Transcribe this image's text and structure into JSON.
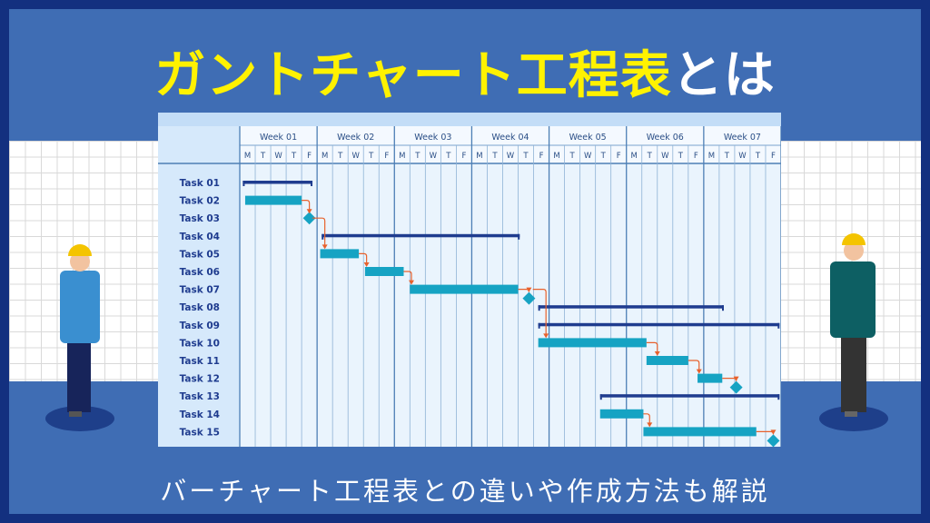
{
  "title": {
    "highlight": "ガントチャート工程表",
    "rest": "とは"
  },
  "subtitle": "バーチャート工程表との違いや作成方法も解説",
  "colors": {
    "frame": "#13307f",
    "background": "#3f6db4",
    "title_yellow": "#fff200",
    "summary_bar": "#1f3c8f",
    "task_bar": "#16a3c3",
    "arrow": "#e8612c",
    "grid_panel": "#eaf4fd",
    "header": "#d6e9fb"
  },
  "chart_data": {
    "type": "gantt",
    "weeks": [
      "Week 01",
      "Week 02",
      "Week 03",
      "Week 04",
      "Week 05",
      "Week 06",
      "Week 07"
    ],
    "days": [
      "M",
      "T",
      "W",
      "T",
      "F"
    ],
    "tasks": [
      {
        "name": "Task 01",
        "kind": "summary",
        "start": 0.2,
        "end": 4.7
      },
      {
        "name": "Task 02",
        "kind": "bar",
        "start": 0.35,
        "end": 4.0
      },
      {
        "name": "Task 03",
        "kind": "milestone",
        "at": 4.5
      },
      {
        "name": "Task 04",
        "kind": "summary",
        "start": 5.3,
        "end": 18.1
      },
      {
        "name": "Task 05",
        "kind": "bar",
        "start": 5.2,
        "end": 7.7
      },
      {
        "name": "Task 06",
        "kind": "bar",
        "start": 8.1,
        "end": 10.6
      },
      {
        "name": "Task 07",
        "kind": "bar",
        "start": 11.0,
        "end": 18.0,
        "milestone": 18.7
      },
      {
        "name": "Task 08",
        "kind": "summary",
        "start": 19.3,
        "end": 31.3
      },
      {
        "name": "Task 09",
        "kind": "summary",
        "start": 19.3,
        "end": 34.9
      },
      {
        "name": "Task 10",
        "kind": "bar",
        "start": 19.3,
        "end": 26.3
      },
      {
        "name": "Task 11",
        "kind": "bar",
        "start": 26.3,
        "end": 29.0
      },
      {
        "name": "Task 12",
        "kind": "bar",
        "start": 29.6,
        "end": 31.2,
        "milestone": 32.1
      },
      {
        "name": "Task 13",
        "kind": "summary",
        "start": 23.3,
        "end": 34.9
      },
      {
        "name": "Task 14",
        "kind": "bar",
        "start": 23.3,
        "end": 26.1
      },
      {
        "name": "Task 15",
        "kind": "bar",
        "start": 26.1,
        "end": 33.4,
        "milestone": 34.5
      }
    ]
  }
}
